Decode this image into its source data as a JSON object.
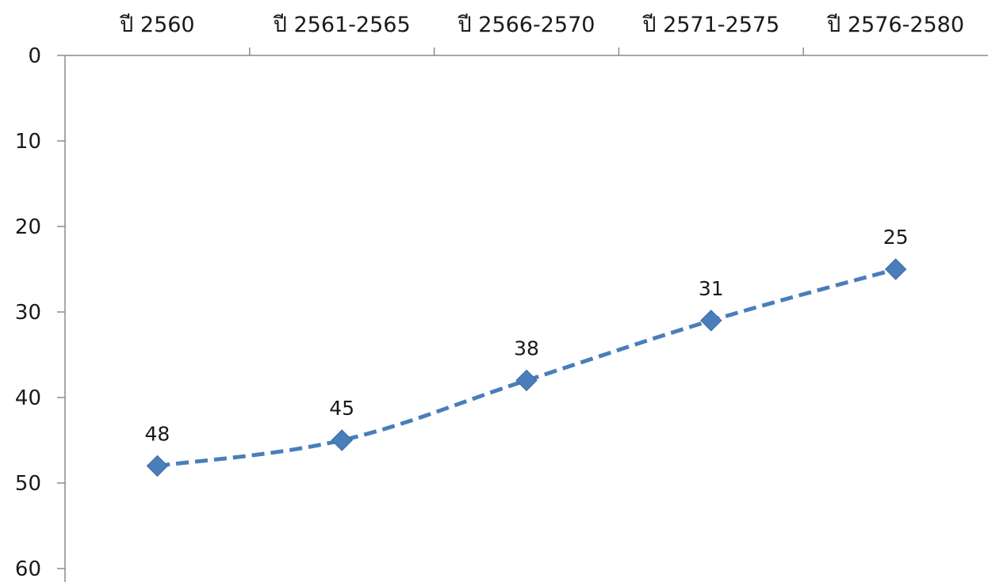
{
  "chart_data": {
    "type": "line",
    "categories": [
      "ปี 2560",
      "ปี 2561-2565",
      "ปี 2566-2570",
      "ปี 2571-2575",
      "ปี 2576-2580"
    ],
    "values": [
      48,
      45,
      38,
      31,
      25
    ],
    "y_tick_labels": [
      "0",
      "10",
      "20",
      "30",
      "40",
      "50",
      "60"
    ],
    "ylim": [
      0,
      60
    ],
    "y_axis_reversed": true,
    "x_axis_position": "top",
    "line_style": "dashed",
    "marker": "diamond",
    "grid": false,
    "legend": "none",
    "data_labels": [
      "48",
      "45",
      "38",
      "31",
      "25"
    ]
  },
  "colors": {
    "series": "#4a7ebb",
    "axis": "#8c8c8c",
    "text": "#1a1a1a"
  }
}
